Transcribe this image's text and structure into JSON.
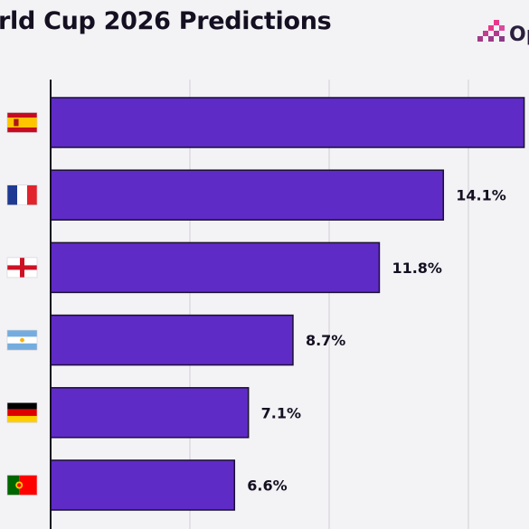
{
  "header": {
    "title": "rld Cup 2026 Predictions",
    "logo_text": "Op"
  },
  "colors": {
    "bar": "#5f2bc6",
    "background": "#f3f2f5",
    "text": "#141021"
  },
  "chart_data": {
    "type": "bar",
    "orientation": "horizontal",
    "title": "rld Cup 2026 Predictions",
    "categories": [
      "Spain",
      "France",
      "England",
      "Argentina",
      "Germany",
      "Portugal"
    ],
    "category_icons": [
      "spain-flag-icon",
      "france-flag-icon",
      "england-flag-icon",
      "argentina-flag-icon",
      "germany-flag-icon",
      "portugal-flag-icon"
    ],
    "values": [
      17.0,
      14.1,
      11.8,
      8.7,
      7.1,
      6.6
    ],
    "labels": [
      "",
      "14.1%",
      "11.8%",
      "8.7%",
      "7.1%",
      "6.6%"
    ],
    "xlim": [
      0,
      17.5
    ],
    "grid": true,
    "unit": "%"
  }
}
